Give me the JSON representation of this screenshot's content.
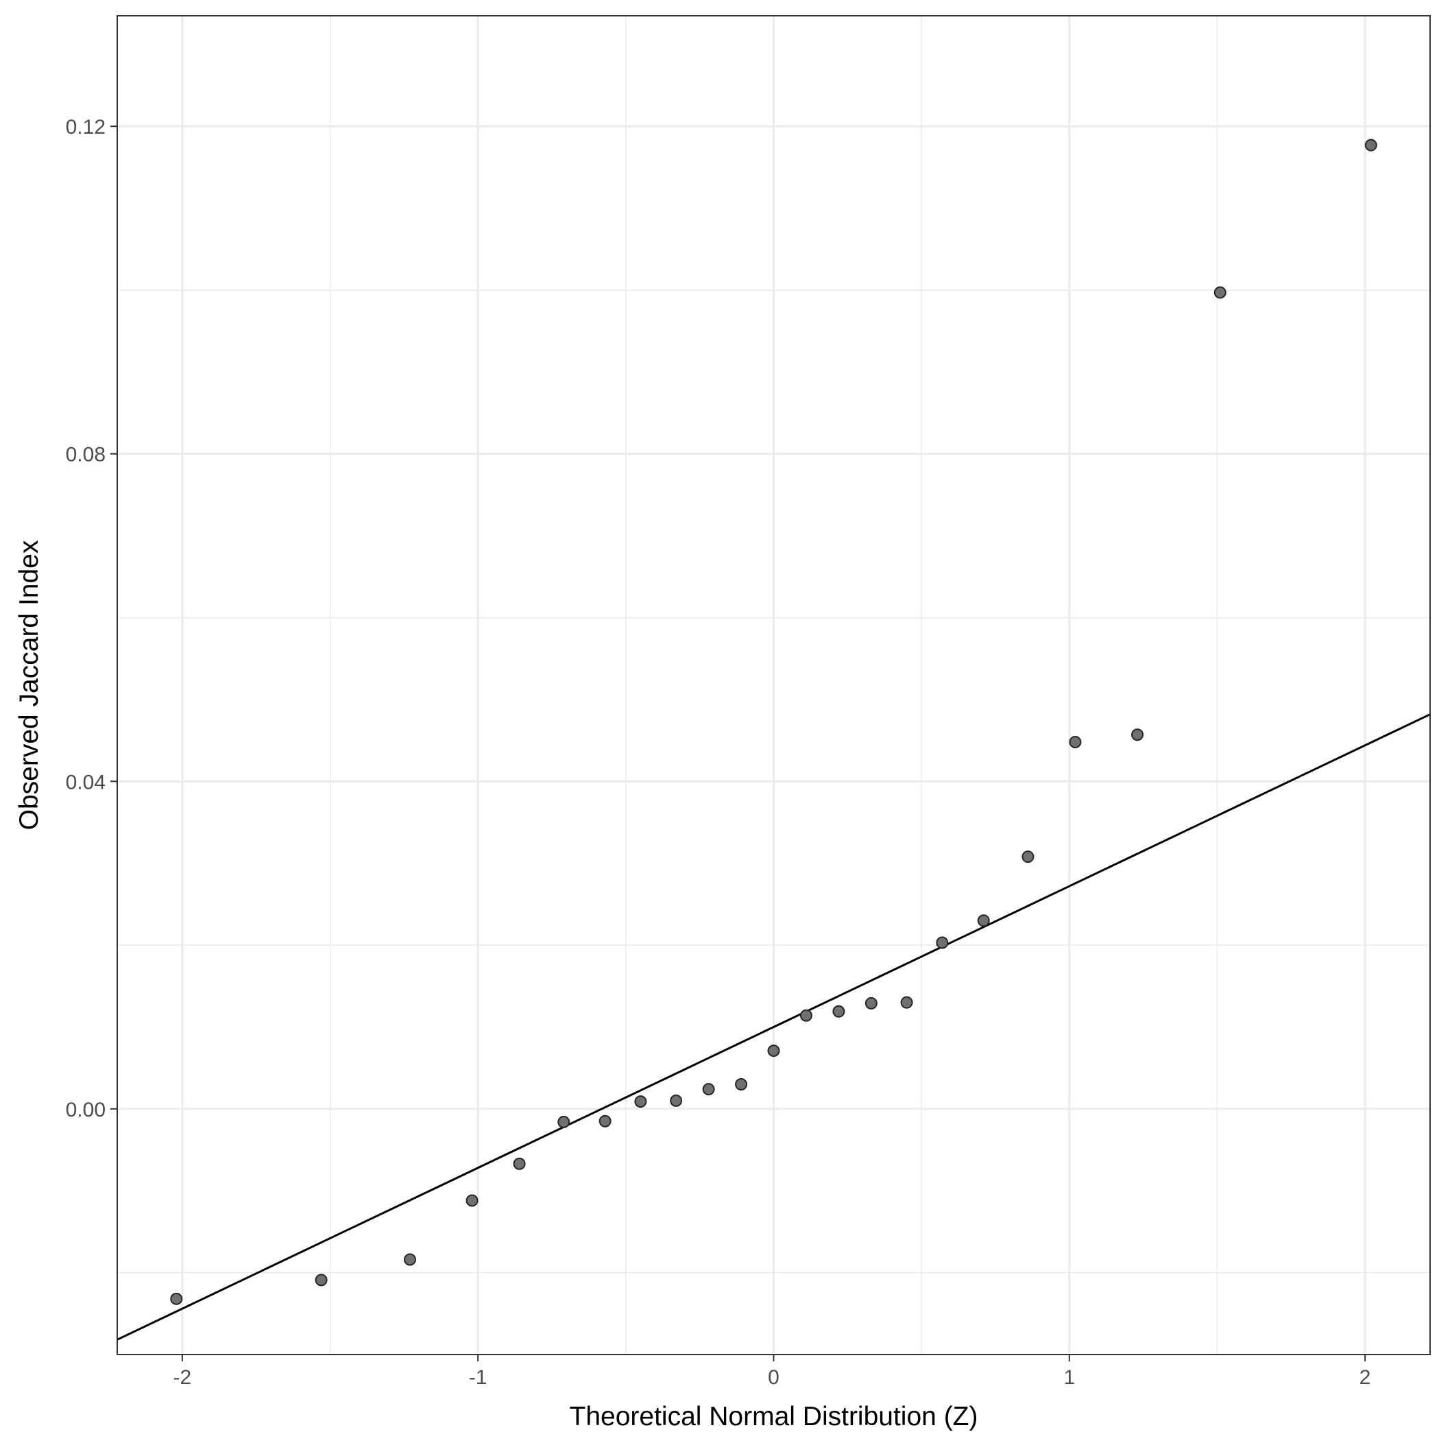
{
  "chart_data": {
    "type": "scatter",
    "title": "",
    "xlabel": "Theoretical Normal Distribution (Z)",
    "ylabel": "Observed Jaccard Index",
    "xlim": [
      -2.22,
      2.22
    ],
    "ylim": [
      -0.03,
      0.1335
    ],
    "x_ticks": [
      -2,
      -1,
      0,
      1,
      2
    ],
    "x_tick_labels": [
      "-2",
      "-1",
      "0",
      "1",
      "2"
    ],
    "y_ticks": [
      0.0,
      0.04,
      0.08,
      0.12
    ],
    "y_tick_labels": [
      "0.00",
      "0.04",
      "0.08",
      "0.12"
    ],
    "x_minor_ticks": [
      -1.5,
      -0.5,
      0.5,
      1.5
    ],
    "y_minor_ticks": [
      -0.02,
      0.02,
      0.06,
      0.1
    ],
    "grid": true,
    "theme": "bw",
    "points": [
      {
        "x": -2.02,
        "y": -0.0232
      },
      {
        "x": -1.53,
        "y": -0.0209
      },
      {
        "x": -1.23,
        "y": -0.0184
      },
      {
        "x": -1.02,
        "y": -0.0112
      },
      {
        "x": -0.86,
        "y": -0.0067
      },
      {
        "x": -0.71,
        "y": -0.0016
      },
      {
        "x": -0.57,
        "y": -0.0015
      },
      {
        "x": -0.45,
        "y": 0.0009
      },
      {
        "x": -0.33,
        "y": 0.001
      },
      {
        "x": -0.22,
        "y": 0.0024
      },
      {
        "x": -0.11,
        "y": 0.003
      },
      {
        "x": 0.0,
        "y": 0.0071
      },
      {
        "x": 0.11,
        "y": 0.0114
      },
      {
        "x": 0.22,
        "y": 0.0119
      },
      {
        "x": 0.33,
        "y": 0.0129
      },
      {
        "x": 0.45,
        "y": 0.013
      },
      {
        "x": 0.57,
        "y": 0.0203
      },
      {
        "x": 0.71,
        "y": 0.023
      },
      {
        "x": 0.86,
        "y": 0.0308
      },
      {
        "x": 1.02,
        "y": 0.0448
      },
      {
        "x": 1.23,
        "y": 0.0457
      },
      {
        "x": 1.51,
        "y": 0.0997
      },
      {
        "x": 2.02,
        "y": 0.1177
      }
    ],
    "reference_line": {
      "intercept": 0.01,
      "slope": 0.0172,
      "color": "#000000"
    },
    "point_color": "#707070",
    "point_stroke": "#262626"
  }
}
